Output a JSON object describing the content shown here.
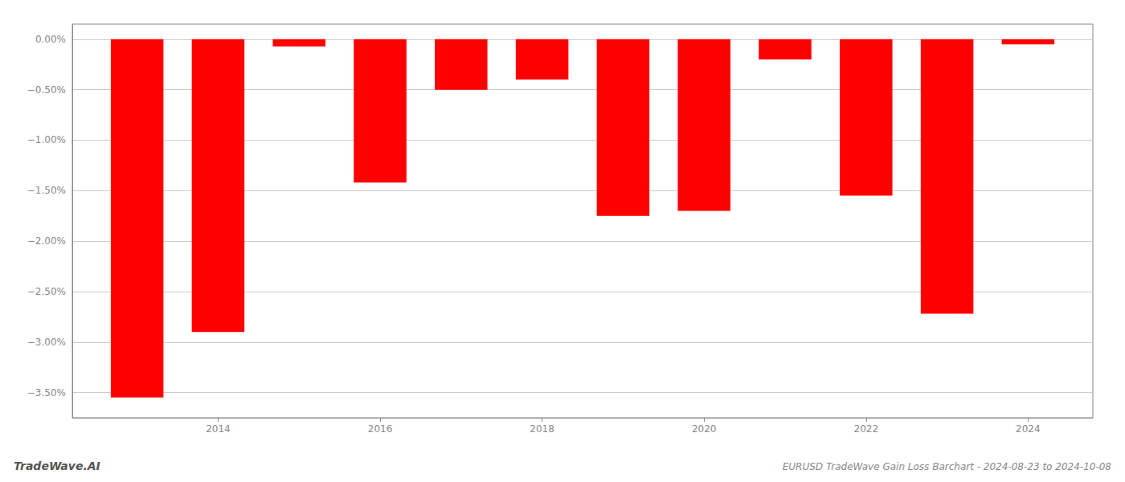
{
  "chart_data": {
    "type": "bar",
    "title": "EURUSD TradeWave Gain Loss Barchart - 2024-08-23 to 2024-10-08",
    "annotations": [
      "TradeWave.AI"
    ],
    "x": [
      2013,
      2014,
      2015,
      2016,
      2017,
      2018,
      2019,
      2020,
      2021,
      2022,
      2023,
      2024
    ],
    "values": [
      -3.55,
      -2.9,
      -0.07,
      -1.42,
      -0.5,
      -0.4,
      -1.75,
      -1.7,
      -0.2,
      -1.55,
      -2.72,
      -0.05
    ],
    "color": "#FF0000",
    "xlim": [
      2012.2,
      2024.8
    ],
    "xticks": [
      2014,
      2016,
      2018,
      2020,
      2022,
      2024
    ],
    "ylim": [
      -3.75,
      0.15
    ],
    "yticks": [
      {
        "value": 0.0,
        "label": "0.00%"
      },
      {
        "value": -0.5,
        "label": "−0.50%"
      },
      {
        "value": -1.0,
        "label": "−1.00%"
      },
      {
        "value": -1.5,
        "label": "−1.50%"
      },
      {
        "value": -2.0,
        "label": "−2.00%"
      },
      {
        "value": -2.5,
        "label": "−2.50%"
      },
      {
        "value": -3.0,
        "label": "−3.00%"
      },
      {
        "value": -3.5,
        "label": "−3.50%"
      }
    ],
    "grid": true
  }
}
